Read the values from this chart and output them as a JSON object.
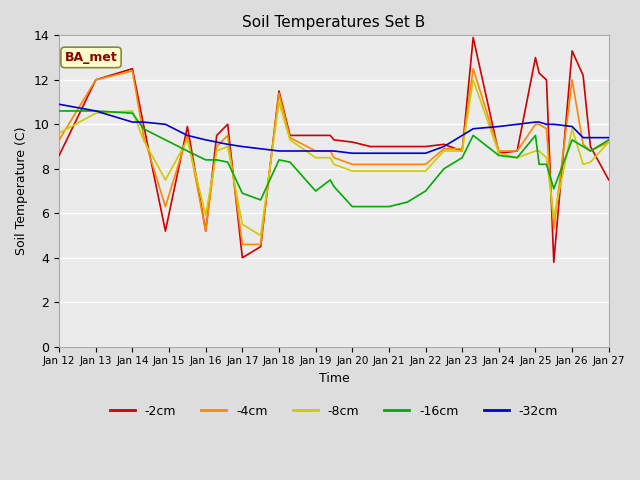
{
  "title": "Soil Temperatures Set B",
  "xlabel": "Time",
  "ylabel": "Soil Temperature (C)",
  "annotation": "BA_met",
  "ylim": [
    0,
    14
  ],
  "yticks": [
    0,
    2,
    4,
    6,
    8,
    10,
    12,
    14
  ],
  "x_labels": [
    "Jan 12",
    "Jan 13",
    "Jan 14",
    "Jan 15",
    "Jan 16",
    "Jan 17",
    "Jan 18",
    "Jan 19",
    "Jan 20",
    "Jan 21",
    "Jan 22",
    "Jan 23",
    "Jan 24",
    "Jan 25",
    "Jan 26",
    "Jan 27"
  ],
  "colors": {
    "-2cm": "#cc0000",
    "-4cm": "#ff8800",
    "-8cm": "#cccc00",
    "-16cm": "#00aa00",
    "-32cm": "#0000cc"
  },
  "series_x": {
    "-2cm": [
      0,
      1,
      2,
      2.3,
      2.9,
      3.5,
      4,
      4.3,
      4.6,
      5,
      5.5,
      6,
      6.3,
      7,
      7.4,
      7.5,
      8,
      8.5,
      9,
      9.5,
      10,
      10.5,
      11,
      11.3,
      12,
      12.5,
      13,
      13.1,
      13.3,
      13.5,
      14,
      14.3,
      14.5,
      15
    ],
    "-4cm": [
      0,
      1,
      2,
      2.3,
      2.9,
      3.5,
      4,
      4.3,
      4.6,
      5,
      5.5,
      6,
      6.3,
      7,
      7.4,
      7.5,
      8,
      8.5,
      9,
      9.5,
      10,
      10.5,
      11,
      11.3,
      12,
      12.5,
      13,
      13.1,
      13.3,
      13.5,
      14,
      14.3,
      14.5,
      15
    ],
    "-8cm": [
      0,
      1,
      2,
      2.3,
      2.9,
      3.5,
      4,
      4.3,
      4.6,
      5,
      5.5,
      6,
      6.3,
      7,
      7.4,
      7.5,
      8,
      8.5,
      9,
      9.5,
      10,
      10.5,
      11,
      11.3,
      12,
      12.5,
      13,
      13.1,
      13.3,
      13.5,
      14,
      14.3,
      14.5,
      15
    ],
    "-16cm": [
      0,
      1,
      2,
      2.3,
      2.9,
      3.5,
      4,
      4.3,
      4.6,
      5,
      5.5,
      6,
      6.3,
      7,
      7.4,
      7.5,
      8,
      8.5,
      9,
      9.5,
      10,
      10.5,
      11,
      11.3,
      12,
      12.5,
      13,
      13.1,
      13.3,
      13.5,
      14,
      14.3,
      14.5,
      15
    ],
    "-32cm": [
      0,
      1,
      2,
      2.3,
      2.9,
      3.5,
      4,
      4.3,
      4.6,
      5,
      5.5,
      6,
      6.3,
      7,
      7.4,
      7.5,
      8,
      8.5,
      9,
      9.5,
      10,
      10.5,
      11,
      11.3,
      12,
      12.5,
      13,
      13.1,
      13.3,
      13.5,
      14,
      14.3,
      14.5,
      15
    ]
  },
  "series_y": {
    "-2cm": [
      8.6,
      12.0,
      12.5,
      10.0,
      5.2,
      9.9,
      5.2,
      9.5,
      10.0,
      4.0,
      4.5,
      11.5,
      9.5,
      9.5,
      9.5,
      9.3,
      9.2,
      9.0,
      9.0,
      9.0,
      9.0,
      9.1,
      8.8,
      13.9,
      8.7,
      8.8,
      13.0,
      12.3,
      12.0,
      3.8,
      13.3,
      12.2,
      9.0,
      7.5
    ],
    "-4cm": [
      9.3,
      12.0,
      12.4,
      9.5,
      6.3,
      9.5,
      5.2,
      9.0,
      9.5,
      4.6,
      4.6,
      11.4,
      9.4,
      8.8,
      8.8,
      8.5,
      8.2,
      8.2,
      8.2,
      8.2,
      8.2,
      8.9,
      8.9,
      12.5,
      8.8,
      8.8,
      10.0,
      10.0,
      9.8,
      5.3,
      12.0,
      9.1,
      8.8,
      9.2
    ],
    "-8cm": [
      9.6,
      10.5,
      10.6,
      9.3,
      7.5,
      9.3,
      5.9,
      8.8,
      9.0,
      5.5,
      5.0,
      11.0,
      9.3,
      8.5,
      8.5,
      8.2,
      7.9,
      7.9,
      7.9,
      7.9,
      7.9,
      8.8,
      8.8,
      12.0,
      8.7,
      8.5,
      8.8,
      8.8,
      8.5,
      5.8,
      9.8,
      8.2,
      8.3,
      9.2
    ],
    "-16cm": [
      10.6,
      10.6,
      10.5,
      9.8,
      9.3,
      8.8,
      8.4,
      8.4,
      8.3,
      6.9,
      6.6,
      8.4,
      8.3,
      7.0,
      7.5,
      7.2,
      6.3,
      6.3,
      6.3,
      6.5,
      7.0,
      8.0,
      8.5,
      9.5,
      8.6,
      8.5,
      9.5,
      8.2,
      8.2,
      7.1,
      9.3,
      9.0,
      8.8,
      9.3
    ],
    "-32cm": [
      10.9,
      10.6,
      10.1,
      10.1,
      10.0,
      9.5,
      9.3,
      9.2,
      9.1,
      9.0,
      8.9,
      8.8,
      8.8,
      8.8,
      8.8,
      8.8,
      8.7,
      8.7,
      8.7,
      8.7,
      8.7,
      9.0,
      9.5,
      9.8,
      9.9,
      10.0,
      10.1,
      10.1,
      10.0,
      10.0,
      9.9,
      9.4,
      9.4,
      9.4
    ]
  },
  "background_color": "#dddddd",
  "plot_bg": "#ebebeb",
  "grid_color": "#ffffff",
  "figsize": [
    6.4,
    4.8
  ],
  "dpi": 100
}
